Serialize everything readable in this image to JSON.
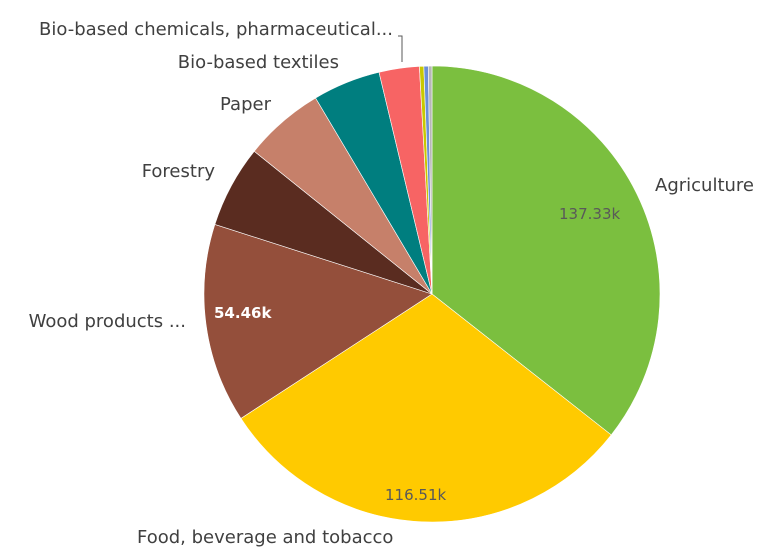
{
  "chart_data": {
    "type": "pie",
    "title": "",
    "slices": [
      {
        "label": "Agriculture",
        "value": 137.33,
        "value_label": "137.33k",
        "color": "#7bbf3f"
      },
      {
        "label": "Food, beverage and tobacco",
        "value": 116.51,
        "value_label": "116.51k",
        "color": "#ffca00"
      },
      {
        "label": "Wood products ...",
        "value": 54.46,
        "value_label": "54.46k",
        "color": "#944f3b"
      },
      {
        "label": "Forestry",
        "value": 22.5,
        "value_label": "",
        "color": "#5a2c20"
      },
      {
        "label": "Paper",
        "value": 22.0,
        "value_label": "",
        "color": "#c6806a"
      },
      {
        "label": "Bio-based textiles",
        "value": 18.5,
        "value_label": "",
        "color": "#007e7f"
      },
      {
        "label": "Bio-based chemicals, pharmaceutical...",
        "value": 11.0,
        "value_label": "",
        "color": "#f76464"
      },
      {
        "label": "",
        "value": 1.2,
        "value_label": "",
        "color": "#c8c800"
      },
      {
        "label": "",
        "value": 1.2,
        "value_label": "",
        "color": "#6b8fd6"
      },
      {
        "label": "",
        "value": 1.0,
        "value_label": "",
        "color": "#b7b7b7"
      }
    ]
  }
}
